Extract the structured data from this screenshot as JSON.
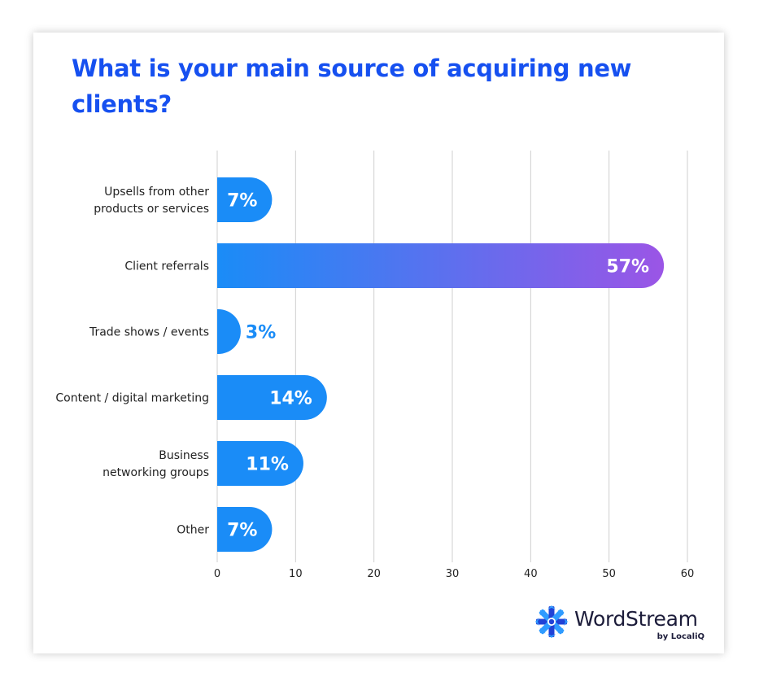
{
  "chart_data": {
    "type": "bar",
    "orientation": "horizontal",
    "title": "What is your main source of acquiring new clients?",
    "categories": [
      [
        "Upsells from other",
        "products or services"
      ],
      [
        "Client referrals"
      ],
      [
        "Trade shows / events"
      ],
      [
        "Content / digital marketing"
      ],
      [
        "Business",
        "networking groups"
      ],
      [
        "Other"
      ]
    ],
    "values": [
      7,
      57,
      3,
      14,
      11,
      7
    ],
    "data_labels": [
      "7%",
      "57%",
      "3%",
      "14%",
      "11%",
      "7%"
    ],
    "x_ticks": [
      "0",
      "10",
      "20",
      "30",
      "40",
      "50",
      "60"
    ],
    "xlim": [
      0,
      60
    ],
    "grid": "vertical",
    "colors": {
      "bar": "#1a8cf7",
      "bar_gradient_end": "#9b55e6",
      "label_inside": "#ffffff",
      "label_outside": "#1a8cf7",
      "gridline": "#cfcfcf",
      "axis_text": "#222222",
      "title": "#1650f0"
    }
  },
  "branding": {
    "logo_word": "WordStream",
    "logo_sub": "by LocaliQ",
    "colors": {
      "mark_light": "#2f9bff",
      "mark_dark": "#2142d6",
      "text": "#1c1c3a"
    }
  }
}
